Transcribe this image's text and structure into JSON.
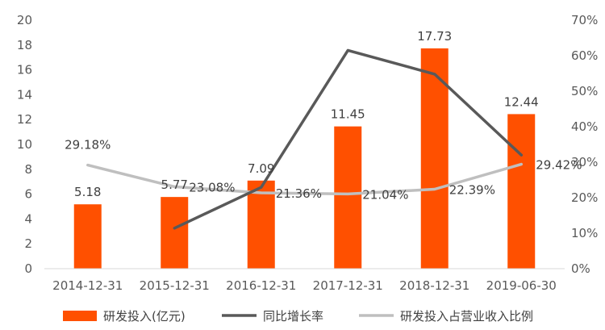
{
  "chart_data": {
    "type": "bar+line",
    "categories": [
      "2014-12-31",
      "2015-12-31",
      "2016-12-31",
      "2017-12-31",
      "2018-12-31",
      "2019-06-30"
    ],
    "series": [
      {
        "name": "研发投入(亿元)",
        "type": "bar",
        "axis": "left",
        "color": "#FF5000",
        "values": [
          5.18,
          5.77,
          7.09,
          11.45,
          17.73,
          12.44
        ],
        "labels": [
          "5.18",
          "5.77",
          "7.09",
          "11.45",
          "17.73",
          "12.44"
        ]
      },
      {
        "name": "同比增长率",
        "type": "line",
        "axis": "right",
        "color": "#595959",
        "values": [
          null,
          11.4,
          22.9,
          61.5,
          54.8,
          32.0
        ]
      },
      {
        "name": "研发投入占营业收入比例",
        "type": "line",
        "axis": "right",
        "color": "#BFBFBF",
        "values": [
          29.18,
          23.08,
          21.36,
          21.04,
          22.39,
          29.42
        ],
        "labels": [
          "29.18%",
          "23.08%",
          "21.36%",
          "21.04%",
          "22.39%",
          "29.42%"
        ]
      }
    ],
    "y_left": {
      "ylim": [
        0,
        20
      ],
      "ticks": [
        "0",
        "2",
        "4",
        "6",
        "8",
        "10",
        "12",
        "14",
        "16",
        "18",
        "20"
      ]
    },
    "y_right": {
      "ylim": [
        0,
        70
      ],
      "ticks": [
        "0%",
        "10%",
        "20%",
        "30%",
        "40%",
        "50%",
        "60%",
        "70%"
      ]
    },
    "grid": false,
    "legend_position": "bottom"
  }
}
